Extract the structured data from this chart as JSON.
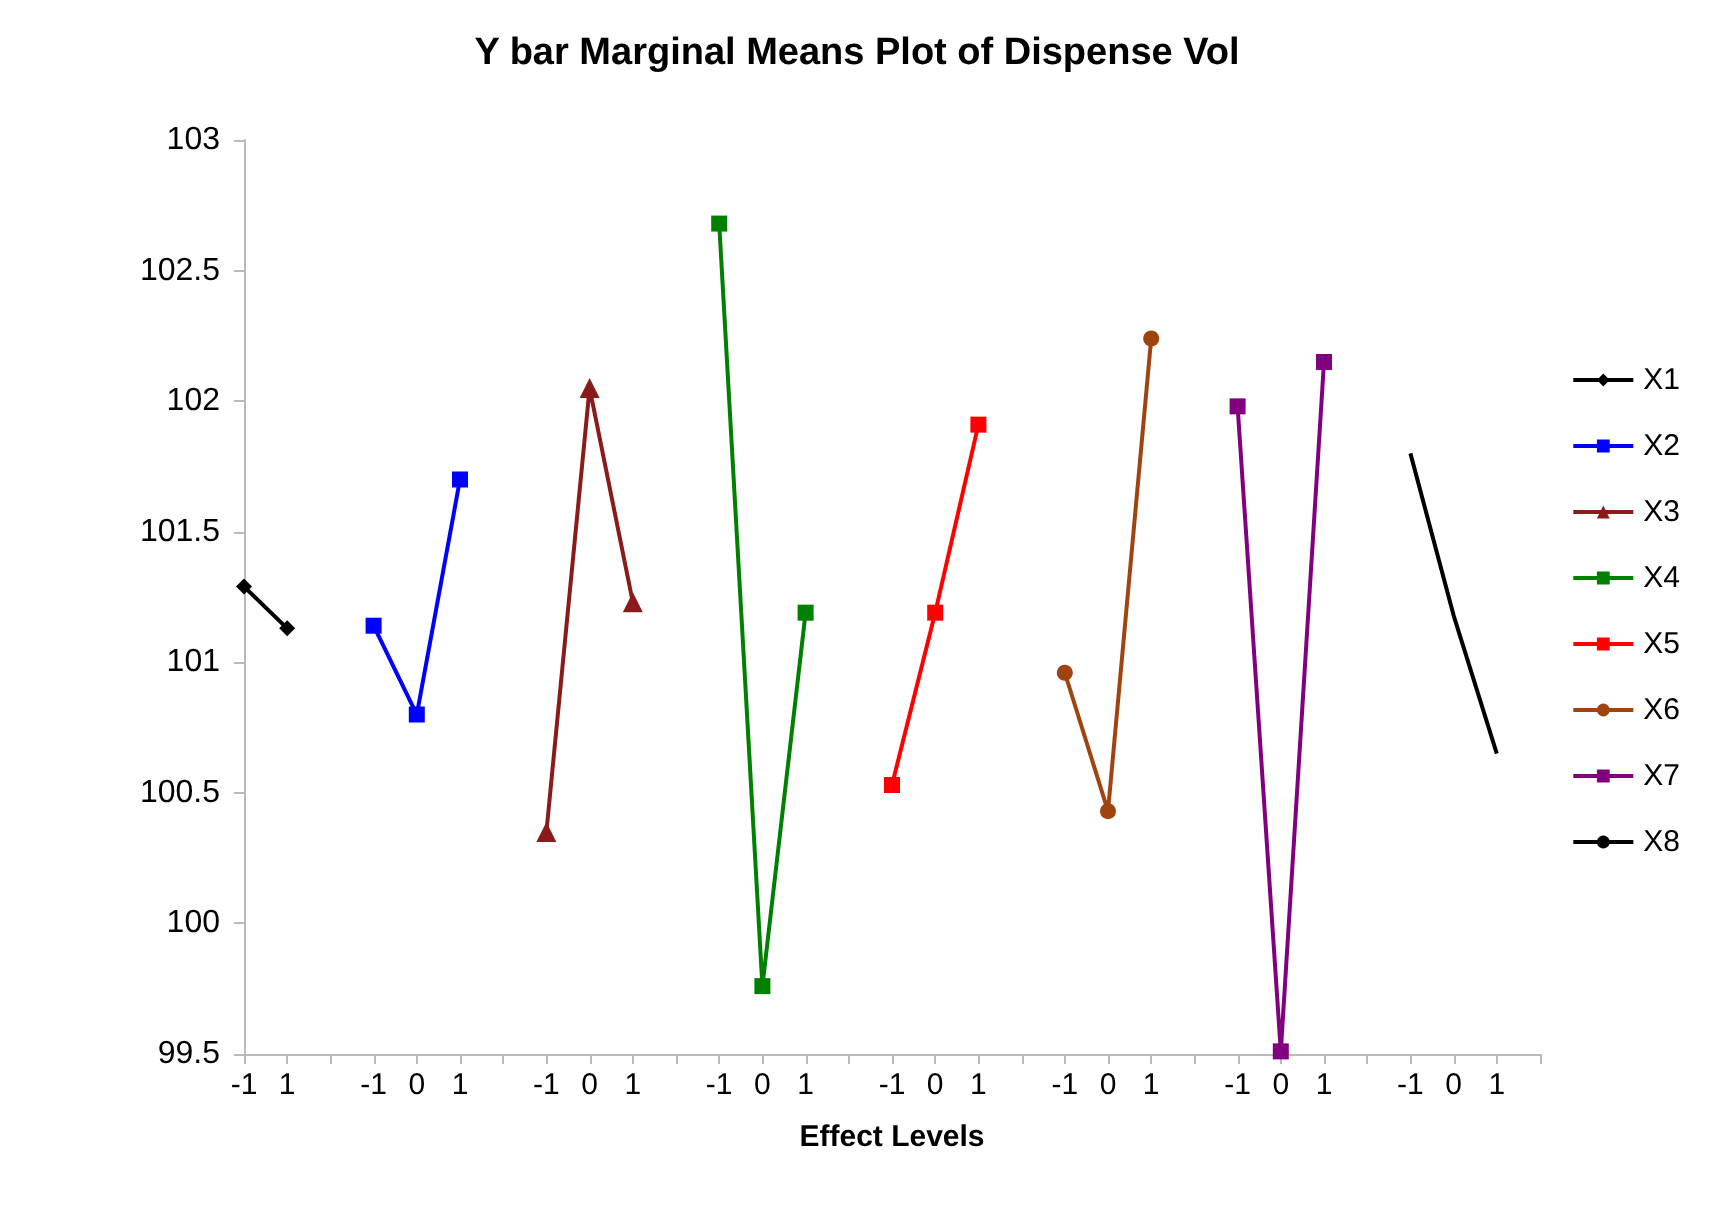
{
  "chart_data": {
    "type": "line",
    "title": "Y bar Marginal Means Plot of Dispense Vol",
    "xlabel": "Effect Levels",
    "categories": [
      "-1",
      "1",
      null,
      "-1",
      "0",
      "1",
      null,
      "-1",
      "0",
      "1",
      null,
      "-1",
      "0",
      "1",
      null,
      "-1",
      "0",
      "1",
      null,
      "-1",
      "0",
      "1",
      null,
      "-1",
      "0",
      "1",
      null,
      "-1",
      "0",
      "1",
      null
    ],
    "series": [
      {
        "name": "X1",
        "color": "#000000",
        "marker": "diamond",
        "values": [
          101.29,
          101.13,
          null,
          null,
          null,
          null,
          null,
          null,
          null,
          null,
          null,
          null,
          null,
          null,
          null,
          null,
          null,
          null,
          null,
          null,
          null,
          null,
          null,
          null,
          null,
          null,
          null,
          null,
          null,
          null,
          null
        ]
      },
      {
        "name": "X2",
        "color": "#0000ff",
        "marker": "square",
        "values": [
          null,
          null,
          null,
          101.14,
          100.8,
          101.7,
          null,
          null,
          null,
          null,
          null,
          null,
          null,
          null,
          null,
          null,
          null,
          null,
          null,
          null,
          null,
          null,
          null,
          null,
          null,
          null,
          null,
          null,
          null,
          null,
          null
        ]
      },
      {
        "name": "X3",
        "color": "#8b1a1a",
        "marker": "triangle",
        "values": [
          null,
          null,
          null,
          null,
          null,
          null,
          null,
          100.35,
          102.05,
          101.23,
          null,
          null,
          null,
          null,
          null,
          null,
          null,
          null,
          null,
          null,
          null,
          null,
          null,
          null,
          null,
          null,
          null,
          null,
          null,
          null,
          null
        ]
      },
      {
        "name": "X4",
        "color": "#008000",
        "marker": "square",
        "values": [
          null,
          null,
          null,
          null,
          null,
          null,
          null,
          null,
          null,
          null,
          null,
          102.68,
          99.76,
          101.19,
          null,
          null,
          null,
          null,
          null,
          null,
          null,
          null,
          null,
          null,
          null,
          null,
          null,
          null,
          null,
          null,
          null
        ]
      },
      {
        "name": "X5",
        "color": "#ff0000",
        "marker": "square",
        "values": [
          null,
          null,
          null,
          null,
          null,
          null,
          null,
          null,
          null,
          null,
          null,
          null,
          null,
          null,
          null,
          100.53,
          101.19,
          101.91,
          null,
          null,
          null,
          null,
          null,
          null,
          null,
          null,
          null,
          null,
          null,
          null,
          null
        ]
      },
      {
        "name": "X6",
        "color": "#a0440f",
        "marker": "circle",
        "values": [
          null,
          null,
          null,
          null,
          null,
          null,
          null,
          null,
          null,
          null,
          null,
          null,
          null,
          null,
          null,
          null,
          null,
          null,
          null,
          100.96,
          100.43,
          102.24,
          null,
          null,
          null,
          null,
          null,
          null,
          null,
          null,
          null
        ]
      },
      {
        "name": "X7",
        "color": "#800080",
        "marker": "square",
        "values": [
          null,
          null,
          null,
          null,
          null,
          null,
          null,
          null,
          null,
          null,
          null,
          null,
          null,
          null,
          null,
          null,
          null,
          null,
          null,
          null,
          null,
          null,
          null,
          101.98,
          99.51,
          102.15,
          null,
          null,
          null,
          null,
          null
        ]
      },
      {
        "name": "X8",
        "color": "#000000",
        "marker": "none",
        "values": [
          null,
          null,
          null,
          null,
          null,
          null,
          null,
          null,
          null,
          null,
          null,
          null,
          null,
          null,
          null,
          null,
          null,
          null,
          null,
          null,
          null,
          null,
          null,
          null,
          null,
          null,
          null,
          101.8,
          101.18,
          100.65,
          null
        ]
      }
    ],
    "ylim": [
      99.5,
      103
    ],
    "yticks": [
      99.5,
      100,
      100.5,
      101,
      101.5,
      102,
      102.5,
      103
    ],
    "grid": false,
    "legend": "right"
  }
}
